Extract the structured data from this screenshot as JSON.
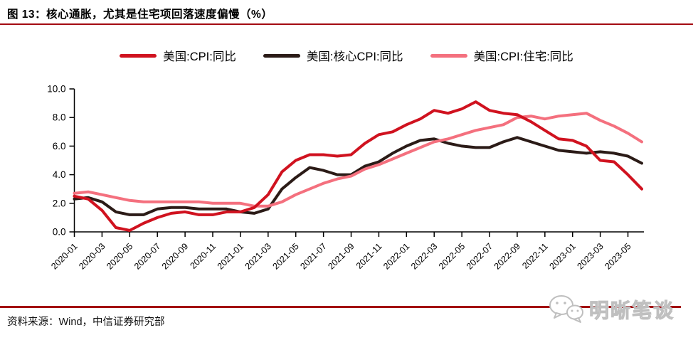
{
  "page": {
    "title": "图 13：核心通胀，尤其是住宅项回落速度偏慢（%）",
    "source_note": "资料来源：Wind，中信证券研究部",
    "watermark_text": "明晰笔谈"
  },
  "colors": {
    "rule_red": "#a30a11",
    "cpi_red": "#d0121f",
    "core_black": "#2b1b17",
    "housing_pink": "#f4707e",
    "watermark_gray": "#bfbfbf",
    "axis_black": "#000000"
  },
  "chart_data": {
    "type": "line",
    "title": "核心通胀，尤其是住宅项回落速度偏慢（%）",
    "xlabel": "",
    "ylabel": "",
    "ylim": [
      0,
      10
    ],
    "yticks": [
      0,
      2,
      4,
      6,
      8,
      10
    ],
    "x_tick_every": 2,
    "grid": false,
    "legend_position": "top-center",
    "x": [
      "2020-01",
      "2020-02",
      "2020-03",
      "2020-04",
      "2020-05",
      "2020-06",
      "2020-07",
      "2020-08",
      "2020-09",
      "2020-10",
      "2020-11",
      "2020-12",
      "2021-01",
      "2021-02",
      "2021-03",
      "2021-04",
      "2021-05",
      "2021-06",
      "2021-07",
      "2021-08",
      "2021-09",
      "2021-10",
      "2021-11",
      "2021-12",
      "2022-01",
      "2022-02",
      "2022-03",
      "2022-04",
      "2022-05",
      "2022-06",
      "2022-07",
      "2022-08",
      "2022-09",
      "2022-10",
      "2022-11",
      "2022-12",
      "2023-01",
      "2023-02",
      "2023-03",
      "2023-04",
      "2023-05",
      "2023-06"
    ],
    "series": [
      {
        "name": "美国:CPI:同比",
        "color": "#d0121f",
        "values": [
          2.5,
          2.3,
          1.5,
          0.3,
          0.1,
          0.6,
          1.0,
          1.3,
          1.4,
          1.2,
          1.2,
          1.4,
          1.4,
          1.7,
          2.6,
          4.2,
          5.0,
          5.4,
          5.4,
          5.3,
          5.4,
          6.2,
          6.8,
          7.0,
          7.5,
          7.9,
          8.5,
          8.3,
          8.6,
          9.1,
          8.5,
          8.3,
          8.2,
          7.7,
          7.1,
          6.5,
          6.4,
          6.0,
          5.0,
          4.9,
          4.0,
          3.0
        ]
      },
      {
        "name": "美国:核心CPI:同比",
        "color": "#2b1b17",
        "values": [
          2.3,
          2.4,
          2.1,
          1.4,
          1.2,
          1.2,
          1.6,
          1.7,
          1.7,
          1.6,
          1.6,
          1.6,
          1.4,
          1.3,
          1.6,
          3.0,
          3.8,
          4.5,
          4.3,
          4.0,
          4.0,
          4.6,
          4.9,
          5.5,
          6.0,
          6.4,
          6.5,
          6.2,
          6.0,
          5.9,
          5.9,
          6.3,
          6.6,
          6.3,
          6.0,
          5.7,
          5.6,
          5.5,
          5.6,
          5.5,
          5.3,
          4.8
        ]
      },
      {
        "name": "美国:CPI:住宅:同比",
        "color": "#f4707e",
        "values": [
          2.7,
          2.8,
          2.6,
          2.4,
          2.2,
          2.1,
          2.1,
          2.1,
          2.1,
          2.1,
          2.0,
          2.0,
          2.0,
          1.8,
          1.8,
          2.1,
          2.6,
          3.0,
          3.4,
          3.7,
          3.9,
          4.4,
          4.7,
          5.1,
          5.5,
          5.9,
          6.3,
          6.5,
          6.8,
          7.1,
          7.3,
          7.5,
          8.0,
          8.1,
          7.9,
          8.1,
          8.2,
          8.3,
          7.8,
          7.4,
          6.9,
          6.3
        ]
      }
    ]
  }
}
